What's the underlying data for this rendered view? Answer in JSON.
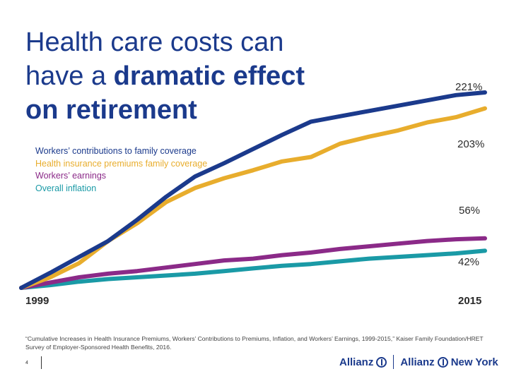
{
  "title": {
    "line1": "Health care costs can",
    "line2_prefix": "have a ",
    "line2_bold": "dramatic effect",
    "line3_bold": "on retirement"
  },
  "chart_data": {
    "type": "line",
    "title": "Health care costs can have a dramatic effect on retirement",
    "x": [
      1999,
      2000,
      2001,
      2002,
      2003,
      2004,
      2005,
      2006,
      2007,
      2008,
      2009,
      2010,
      2011,
      2012,
      2013,
      2014,
      2015
    ],
    "x_tick_labels": [
      "1999",
      "2015"
    ],
    "ylim": [
      0,
      230
    ],
    "series": [
      {
        "name": "Workers’ contributions to family coverage",
        "color": "#1b3a8c",
        "end_label": "221%",
        "values": [
          0,
          17,
          35,
          53,
          77,
          103,
          126,
          141,
          157,
          173,
          188,
          194,
          200,
          206,
          212,
          218,
          221
        ]
      },
      {
        "name": "Health insurance premiums family coverage",
        "color": "#e8ad2d",
        "end_label": "203%",
        "values": [
          0,
          12,
          28,
          53,
          73,
          97,
          113,
          124,
          133,
          143,
          148,
          163,
          171,
          178,
          187,
          193,
          203
        ]
      },
      {
        "name": "Workers’ earnings",
        "color": "#8b2a88",
        "end_label": "56%",
        "values": [
          0,
          6,
          12,
          16,
          19,
          23,
          27,
          31,
          33,
          37,
          40,
          44,
          47,
          50,
          53,
          55,
          56
        ]
      },
      {
        "name": "Overall inflation",
        "color": "#1a9aa6",
        "end_label": "42%",
        "values": [
          0,
          3,
          7,
          10,
          12,
          14,
          16,
          19,
          22,
          25,
          27,
          30,
          33,
          35,
          37,
          39,
          42
        ]
      }
    ]
  },
  "legend": [
    {
      "label": "Workers’ contributions to family coverage",
      "color": "#1b3a8c"
    },
    {
      "label": "Health insurance premiums family coverage",
      "color": "#e8ad2d"
    },
    {
      "label": "Workers’ earnings",
      "color": "#8b2a88"
    },
    {
      "label": "Overall inflation",
      "color": "#1a9aa6"
    }
  ],
  "axis": {
    "start_year": "1999",
    "end_year": "2015"
  },
  "end_labels": {
    "contrib": "221%",
    "premium": "203%",
    "earnings": "56%",
    "inflation": "42%"
  },
  "source": "“Cumulative Increases in Health Insurance Premiums, Workers’ Contributions to Premiums, Inflation, and Workers’ Earnings, 1999-2015,” Kaiser Family Foundation/HRET Survey of Employer-Sponsored Health Benefits, 2016.",
  "page_number": "4",
  "brand": {
    "logo1": "Allianz",
    "logo2": "Allianz",
    "logo2_suffix": "New York"
  }
}
